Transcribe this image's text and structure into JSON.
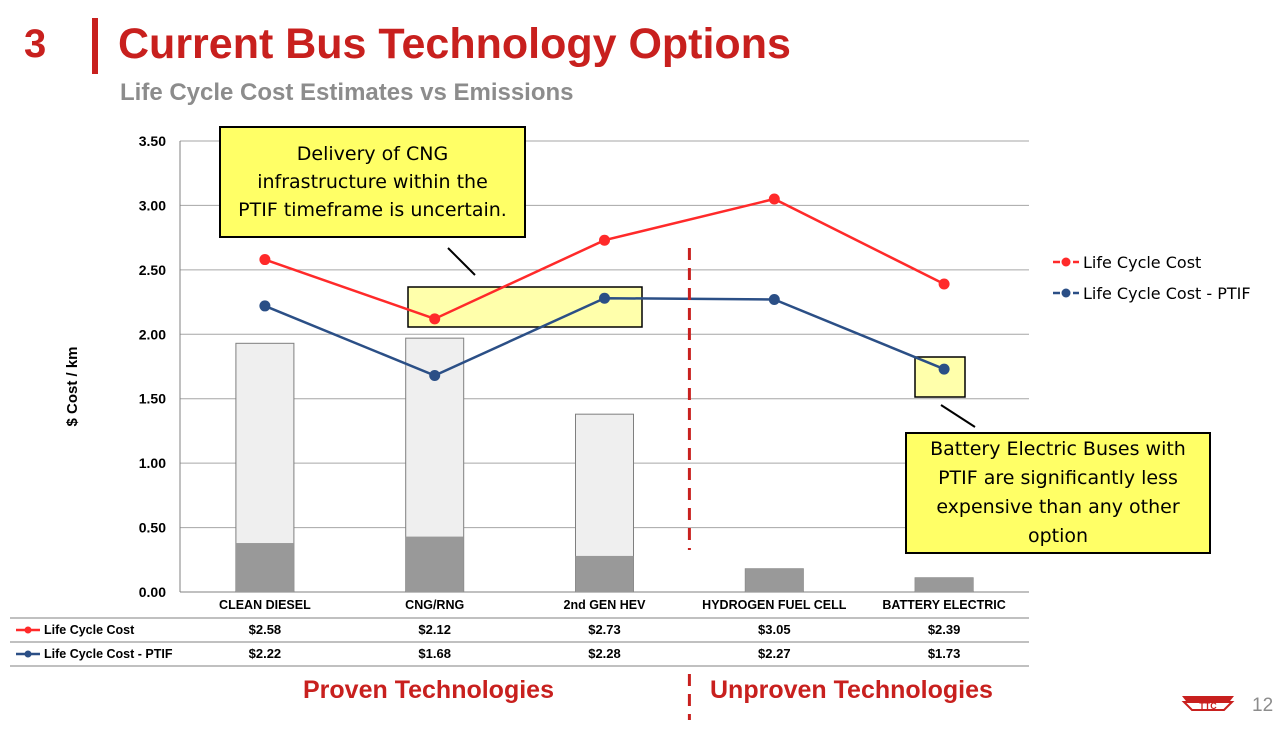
{
  "slide": {
    "section_number": "3",
    "title": "Current Bus Technology Options",
    "subtitle": "Life Cycle Cost Estimates vs Emissions",
    "page_number": "12"
  },
  "chart_data": {
    "type": "bar",
    "title": "",
    "xlabel": "",
    "ylabel": "$ Cost / km",
    "ylim": [
      0,
      3.5
    ],
    "yticks": [
      "0.00",
      "0.50",
      "1.00",
      "1.50",
      "2.00",
      "2.50",
      "3.00",
      "3.50"
    ],
    "categories": [
      "CLEAN DIESEL",
      "CNG/RNG",
      "2nd GEN HEV",
      "HYDROGEN FUEL CELL",
      "BATTERY ELECTRIC"
    ],
    "grid": true,
    "legend": "right",
    "bars": {
      "total": [
        1.93,
        1.97,
        1.38,
        0.18,
        0.11
      ],
      "lower_segment": [
        0.38,
        0.43,
        0.28,
        0.18,
        0.11
      ],
      "total_color": "#efefef",
      "lower_color": "#999999"
    },
    "series": [
      {
        "name": "Life Cycle Cost",
        "color": "#ff2a2a",
        "values": [
          2.58,
          2.12,
          2.73,
          3.05,
          2.39
        ],
        "table_values": [
          "$2.58",
          "$2.12",
          "$2.73",
          "$3.05",
          "$2.39"
        ]
      },
      {
        "name": "Life Cycle Cost - PTIF",
        "color": "#2b4f86",
        "values": [
          2.22,
          1.68,
          2.28,
          2.27,
          1.73
        ],
        "table_values": [
          "$2.22",
          "$1.68",
          "$2.28",
          "$2.27",
          "$1.73"
        ]
      }
    ],
    "divider_after_category": 2,
    "highlight_color": "#ffff66"
  },
  "annotations": {
    "cng_note": "Delivery of CNG infrastructure within the PTIF timeframe is uncertain.",
    "battery_note": "Battery Electric Buses with PTIF are significantly less expensive than any other option"
  },
  "groups": {
    "proven": "Proven Technologies",
    "unproven": "Unproven Technologies"
  }
}
